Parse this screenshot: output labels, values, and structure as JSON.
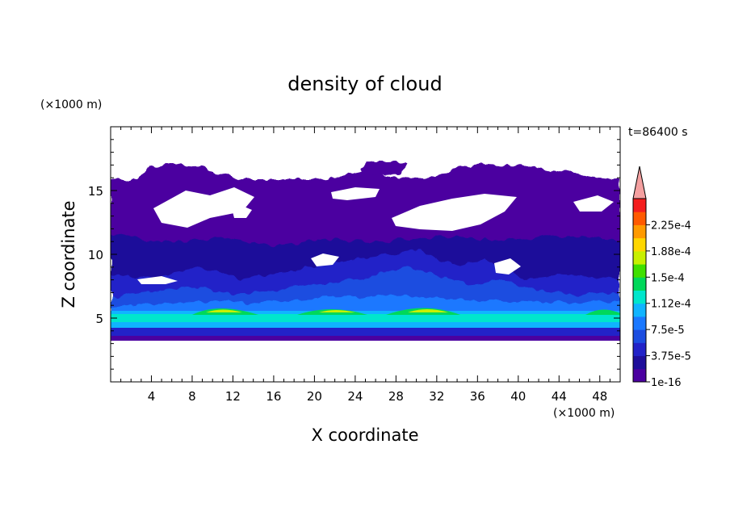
{
  "chart_data": {
    "type": "heatmap",
    "title": "density of cloud",
    "xlabel": "X coordinate",
    "ylabel": "Z coordinate",
    "x_unit": "(×1000 m)",
    "y_unit": "(×1000 m)",
    "time_label": "t=86400 s",
    "xlim": [
      0,
      50
    ],
    "ylim": [
      0,
      20
    ],
    "x_ticks": [
      4,
      8,
      12,
      16,
      20,
      24,
      28,
      32,
      36,
      40,
      44,
      48
    ],
    "y_ticks": [
      5,
      10,
      15
    ],
    "colorbar": {
      "tick_labels": [
        "1e-16",
        "3.75e-5",
        "7.5e-5",
        "1.12e-4",
        "1.5e-4",
        "1.88e-4",
        "2.25e-4"
      ],
      "levels": [
        1e-16,
        1.875e-05,
        3.75e-05,
        5.625e-05,
        7.5e-05,
        9.375e-05,
        0.0001125,
        0.00013125,
        0.00015,
        0.00016875,
        0.0001875,
        0.00020625,
        0.000225,
        0.00024375
      ],
      "colors": [
        "#4b00a0",
        "#1e0e9a",
        "#2222c8",
        "#1b4de0",
        "#1a78ff",
        "#10b4ff",
        "#00e6cc",
        "#00d85a",
        "#40e000",
        "#c8f000",
        "#ffd700",
        "#ff9a00",
        "#ff5a00",
        "#f41e1e"
      ],
      "extend_color": "#f4a0a0"
    },
    "features": {
      "cloud_base_km": 3.4,
      "dense_layer_km": [
        4.5,
        6.0
      ],
      "peak_density_cores_x_km": [
        11,
        23,
        31,
        47
      ],
      "upper_cloud_top_km": 17.2,
      "clear_patches": [
        {
          "x": [
            5,
            12
          ],
          "z": [
            12,
            15
          ]
        },
        {
          "x": [
            28,
            38
          ],
          "z": [
            11,
            14
          ]
        },
        {
          "x": [
            21,
            23
          ],
          "z": [
            15,
            16
          ]
        }
      ]
    }
  }
}
